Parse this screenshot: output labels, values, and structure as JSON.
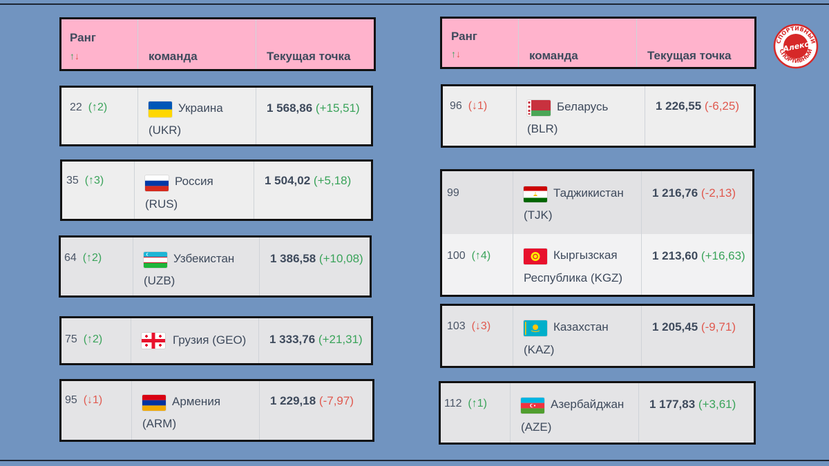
{
  "header": {
    "rank_label": "Ранг",
    "sort_arrows": {
      "up": "↑",
      "down": "↓"
    },
    "team_label": "команда",
    "points_label": "Текущая точка"
  },
  "logo": {
    "top_text": "СПОРТИВНЫЙ",
    "name": "Алекс",
    "bottom_text": "СПОРТИВНЫЙ",
    "color": "#d62828"
  },
  "colors": {
    "background": "#7194c0",
    "header": "#ffb3cc",
    "up": "#3aa35a",
    "down": "#e0594f"
  },
  "left": [
    {
      "rank": "22",
      "arrow": "↑",
      "move": "2",
      "dir": "up",
      "name": "Украина",
      "code": "(UKR)",
      "flag": "ukraine-flag",
      "points": "1 568,86",
      "delta": "(+15,51)"
    },
    {
      "rank": "35",
      "arrow": "↑",
      "move": "3",
      "dir": "up",
      "name": "Россия",
      "code": "(RUS)",
      "flag": "russia-flag",
      "points": "1 504,02",
      "delta": "(+5,18)"
    },
    {
      "rank": "64",
      "arrow": "↑",
      "move": "2",
      "dir": "up",
      "name": "Узбекистан",
      "code": "(UZB)",
      "flag": "uzbekistan-flag",
      "points": "1 386,58",
      "delta": "(+10,08)"
    },
    {
      "rank": "75",
      "arrow": "↑",
      "move": "2",
      "dir": "up",
      "name": "Грузия (GEO)",
      "code": "",
      "flag": "georgia-flag",
      "points": "1 333,76",
      "delta": "(+21,31)"
    },
    {
      "rank": "95",
      "arrow": "↓",
      "move": "1",
      "dir": "down",
      "name": "Армения",
      "code": "(ARM)",
      "flag": "armenia-flag",
      "points": "1 229,18",
      "delta": "(-7,97)"
    }
  ],
  "right": [
    {
      "rank": "96",
      "arrow": "↓",
      "move": "1",
      "dir": "down",
      "name": "Беларусь",
      "code": "(BLR)",
      "flag": "belarus-flag",
      "points": "1 226,55",
      "delta": "(-6,25)"
    },
    {
      "rank": "99",
      "arrow": "",
      "move": "",
      "dir": "",
      "name": "Таджикистан",
      "code": "(TJK)",
      "flag": "tajikistan-flag",
      "points": "1 216,76",
      "delta": "(-2,13)"
    },
    {
      "rank": "100",
      "arrow": "↑",
      "move": "4",
      "dir": "up",
      "name": "Кыргызская",
      "code": "Республика (KGZ)",
      "flag": "kyrgyzstan-flag",
      "points": "1 213,60",
      "delta": "(+16,63)"
    },
    {
      "rank": "103",
      "arrow": "↓",
      "move": "3",
      "dir": "down",
      "name": "Казахстан",
      "code": "(KAZ)",
      "flag": "kazakhstan-flag",
      "points": "1 205,45",
      "delta": "(-9,71)"
    },
    {
      "rank": "112",
      "arrow": "↑",
      "move": "1",
      "dir": "up",
      "name": "Азербайджан",
      "code": "(AZE)",
      "flag": "azerbaijan-flag",
      "points": "1 177,83",
      "delta": "(+3,61)"
    }
  ]
}
